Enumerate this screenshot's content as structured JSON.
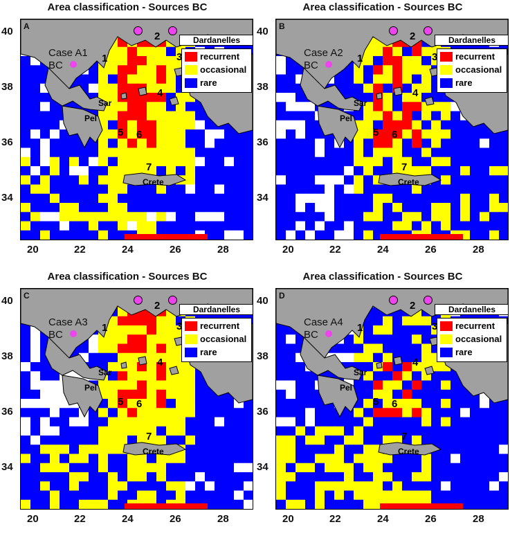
{
  "colors": {
    "recurrent": "#ff0000",
    "occasional": "#ffff00",
    "rare": "#0000ff",
    "land": "#a0a0a0",
    "nodata": "#ffffff",
    "source": "#ee44ee"
  },
  "axes": {
    "xticks": [
      "20",
      "22",
      "24",
      "26",
      "28"
    ],
    "yticks": [
      "40",
      "38",
      "36",
      "34"
    ],
    "xlim": [
      19.5,
      29.2
    ],
    "ylim": [
      33,
      41
    ]
  },
  "legend": {
    "recurrent": "recurrent",
    "occasional": "occasional",
    "rare": "rare"
  },
  "labels": {
    "dardanelles": "Dardanelles",
    "sar": "Sar",
    "pel": "Pel",
    "crete": "Crete",
    "bc": "BC"
  },
  "region_numbers": [
    "1",
    "2",
    "3",
    "4",
    "5",
    "6",
    "7"
  ],
  "panels": [
    {
      "letter": "A",
      "title": "Area classification - Sources BC",
      "case": "Case A1",
      "map_variant": "A"
    },
    {
      "letter": "B",
      "title": "Area classification - Sources BC",
      "case": "Case A2",
      "map_variant": "B"
    },
    {
      "letter": "C",
      "title": "Area classification - Sources BC",
      "case": "Case A3",
      "map_variant": "C"
    },
    {
      "letter": "D",
      "title": "Area classification - Sources BC",
      "case": "Case A4",
      "map_variant": "D"
    }
  ]
}
